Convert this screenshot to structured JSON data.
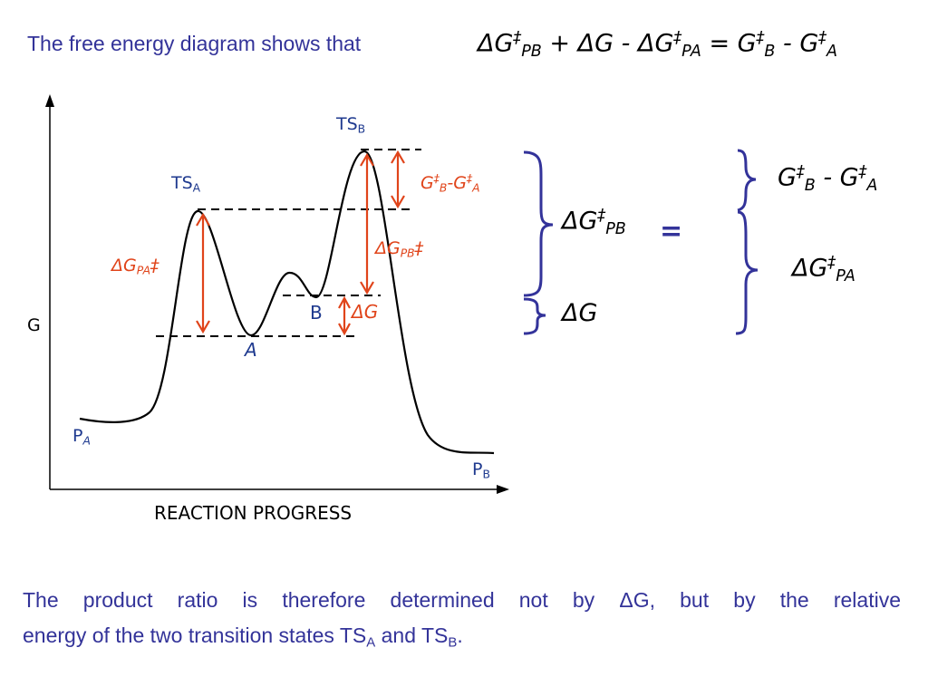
{
  "intro": {
    "text": "The free energy diagram shows that"
  },
  "equation": {
    "delta": "Δ",
    "g": "G",
    "ddagger": "‡",
    "pb": "PB",
    "pa": "PA",
    "b": "B",
    "a": "A",
    "plus": "+",
    "minus": "-",
    "equals": "="
  },
  "diagram": {
    "y_axis_label": "G",
    "x_axis_label": "REACTION PROGRESS",
    "ts_a": {
      "main": "TS",
      "sub": "A"
    },
    "ts_b": {
      "main": "TS",
      "sub": "B"
    },
    "int_a": "A",
    "int_b": "B",
    "p_a": {
      "main": "P",
      "sub": "A"
    },
    "p_b": {
      "main": "P",
      "sub": "B"
    },
    "dg_pa": {
      "delta": "Δ",
      "g": "G",
      "sub": "PA",
      "sup": "‡"
    },
    "dg_pb": {
      "delta": "Δ",
      "g": "G",
      "sub": "PB",
      "sup": "‡"
    },
    "dg": {
      "delta": "Δ",
      "g": "G"
    },
    "gb_ga": {
      "g1": "G",
      "sup1": "‡",
      "sub1": "B",
      "dash": "-",
      "g2": "G",
      "sup2": "‡",
      "sub2": "A"
    },
    "colors": {
      "curve": "#000000",
      "arrow": "#e0441a",
      "label": "#1f3a8f",
      "brace": "#33339a"
    }
  },
  "braces": {
    "left_top": {
      "delta": "Δ",
      "g": "G",
      "sup": "‡",
      "sub": "PB"
    },
    "left_bottom": {
      "delta": "Δ",
      "g": "G"
    },
    "equals": "=",
    "right_top": {
      "g1": "G",
      "sup1": "‡",
      "sub1": "B",
      "dash": "-",
      "g2": "G",
      "sup2": "‡",
      "sub2": "A"
    },
    "right_bottom": {
      "delta": "Δ",
      "g": "G",
      "sup": "‡",
      "sub": "PA"
    }
  },
  "conclusion": {
    "line1": "The product ratio is therefore determined not by ΔG, but by the relative",
    "line2_pre": "energy of the two transition states TS",
    "sub_a": "A",
    "and": " and TS",
    "sub_b": "B",
    "end": "."
  }
}
